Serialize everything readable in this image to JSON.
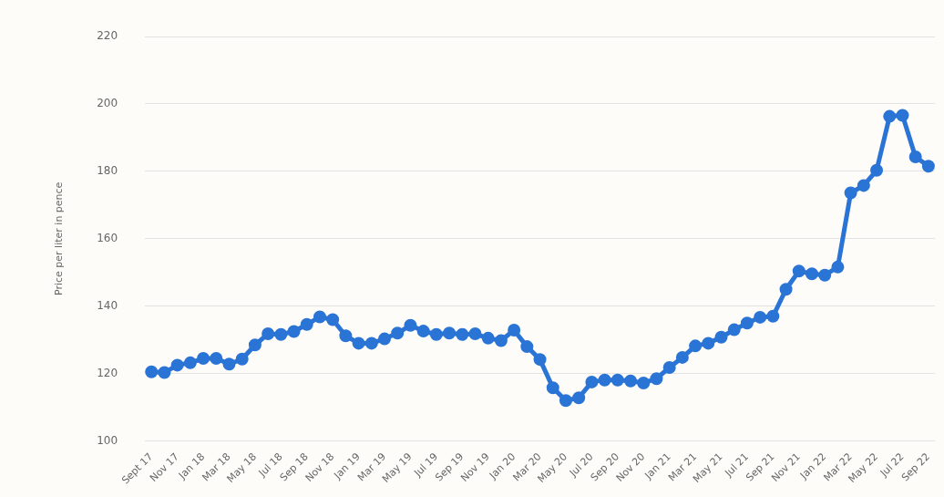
{
  "chart_data": {
    "type": "line",
    "ylabel": "Price per liter in pence",
    "categories": [
      "Sept 17",
      null,
      "Nov 17",
      null,
      "Jan 18",
      null,
      "Mar 18",
      null,
      "May 18",
      null,
      "Jul 18",
      null,
      "Sep 18",
      null,
      "Nov 18",
      null,
      "Jan 19",
      null,
      "Mar 19",
      null,
      "May 19",
      null,
      "Jul 19",
      null,
      "Sep 19",
      null,
      "Nov 19",
      null,
      "Jan 20",
      null,
      "Mar 20",
      null,
      "May 20",
      null,
      "Jul 20",
      null,
      "Sep 20",
      null,
      "Nov 20",
      null,
      "Jan 21",
      null,
      "Mar 21",
      null,
      "May 21",
      null,
      "Jul 21",
      null,
      "Sep 21",
      null,
      "Nov 21",
      null,
      "Jan 22",
      null,
      "Mar 22",
      null,
      "May 22",
      null,
      "Jul 22",
      null,
      "Sep 22"
    ],
    "series": [
      {
        "color": "#2a74d5",
        "values": [
          120.5,
          120.3,
          122.5,
          123.2,
          124.5,
          124.5,
          122.8,
          124.3,
          128.5,
          131.8,
          131.6,
          132.5,
          134.6,
          136.8,
          136.0,
          131.2,
          129,
          129,
          130.3,
          132,
          134.3,
          132.6,
          131.6,
          132,
          131.6,
          131.8,
          130.5,
          129.8,
          132.9,
          128,
          124.2,
          115.8,
          112,
          112.8,
          117.5,
          118.1,
          118.1,
          117.8,
          117.2,
          118.5,
          121.8,
          124.8,
          128.2,
          129,
          130.8,
          133,
          135,
          136.7,
          137,
          145,
          150.4,
          149.6,
          149.2,
          151.6,
          173.6,
          175.8,
          180.3,
          196.3,
          196.6,
          184.3,
          181.5
        ]
      }
    ],
    "ylim": [
      100,
      220
    ],
    "yticks": [
      100,
      120,
      140,
      160,
      180,
      200,
      220
    ],
    "grid": "y",
    "legend": false,
    "marker": "circle",
    "line_style": "solid"
  }
}
